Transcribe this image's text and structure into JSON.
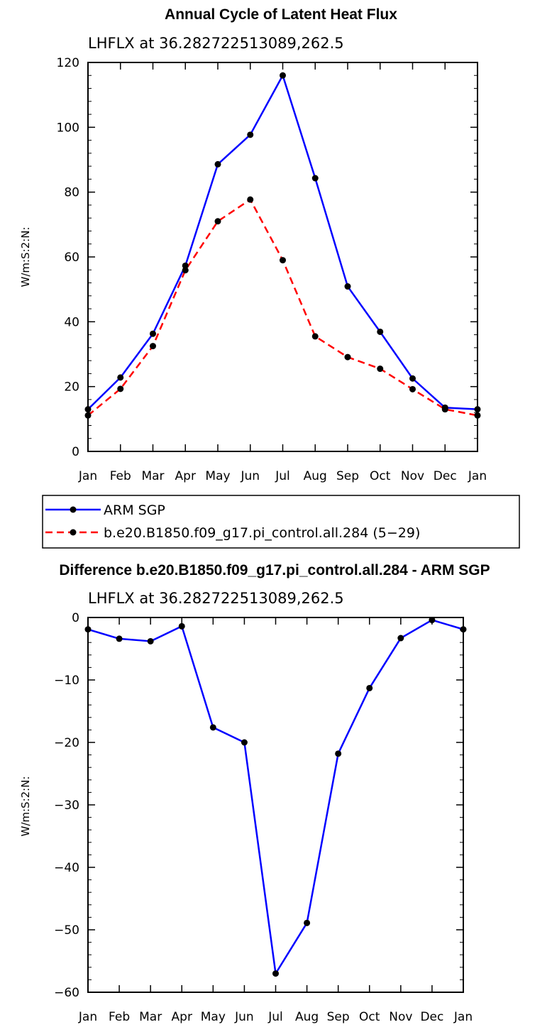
{
  "chart_data": [
    {
      "type": "line",
      "title": "Annual Cycle of Latent Heat Flux",
      "subtitle": "LHFLX at 36.282722513089,262.5",
      "ylabel": "W/m:S:2:N:",
      "xlabel": "",
      "categories": [
        "Jan",
        "Feb",
        "Mar",
        "Apr",
        "May",
        "Jun",
        "Jul",
        "Aug",
        "Sep",
        "Oct",
        "Nov",
        "Dec",
        "Jan"
      ],
      "ylim": [
        0,
        120
      ],
      "yticks": [
        0,
        20,
        40,
        60,
        80,
        100,
        120
      ],
      "grid": false,
      "legend_placement": "bottom",
      "series": [
        {
          "name": "ARM SGP",
          "color": "#0000ff",
          "style": "solid",
          "values": [
            13.0,
            22.8,
            36.3,
            57.3,
            88.6,
            97.7,
            116.0,
            84.3,
            50.9,
            36.9,
            22.5,
            13.5,
            13.0
          ]
        },
        {
          "name": "b.e20.B1850.f09_g17.pi_control.all.284 (5−29)",
          "color": "#ff0000",
          "style": "dashed",
          "values": [
            11.1,
            19.3,
            32.5,
            55.9,
            71.0,
            77.7,
            59.0,
            35.5,
            29.1,
            25.5,
            19.2,
            13.0,
            11.1
          ]
        }
      ]
    },
    {
      "type": "line",
      "title": "Difference b.e20.B1850.f09_g17.pi_control.all.284 - ARM SGP",
      "subtitle": "LHFLX at 36.282722513089,262.5",
      "ylabel": "W/m:S:2:N:",
      "xlabel": "",
      "categories": [
        "Jan",
        "Feb",
        "Mar",
        "Apr",
        "May",
        "Jun",
        "Jul",
        "Aug",
        "Sep",
        "Oct",
        "Nov",
        "Dec",
        "Jan"
      ],
      "ylim": [
        -60,
        0
      ],
      "yticks": [
        -60,
        -50,
        -40,
        -30,
        -20,
        -10,
        0
      ],
      "grid": false,
      "series": [
        {
          "color": "#0000ff",
          "style": "solid",
          "values": [
            -1.9,
            -3.4,
            -3.8,
            -1.4,
            -17.6,
            -20.0,
            -57.0,
            -48.9,
            -21.8,
            -11.3,
            -3.3,
            -0.4,
            -1.9
          ]
        }
      ]
    }
  ]
}
